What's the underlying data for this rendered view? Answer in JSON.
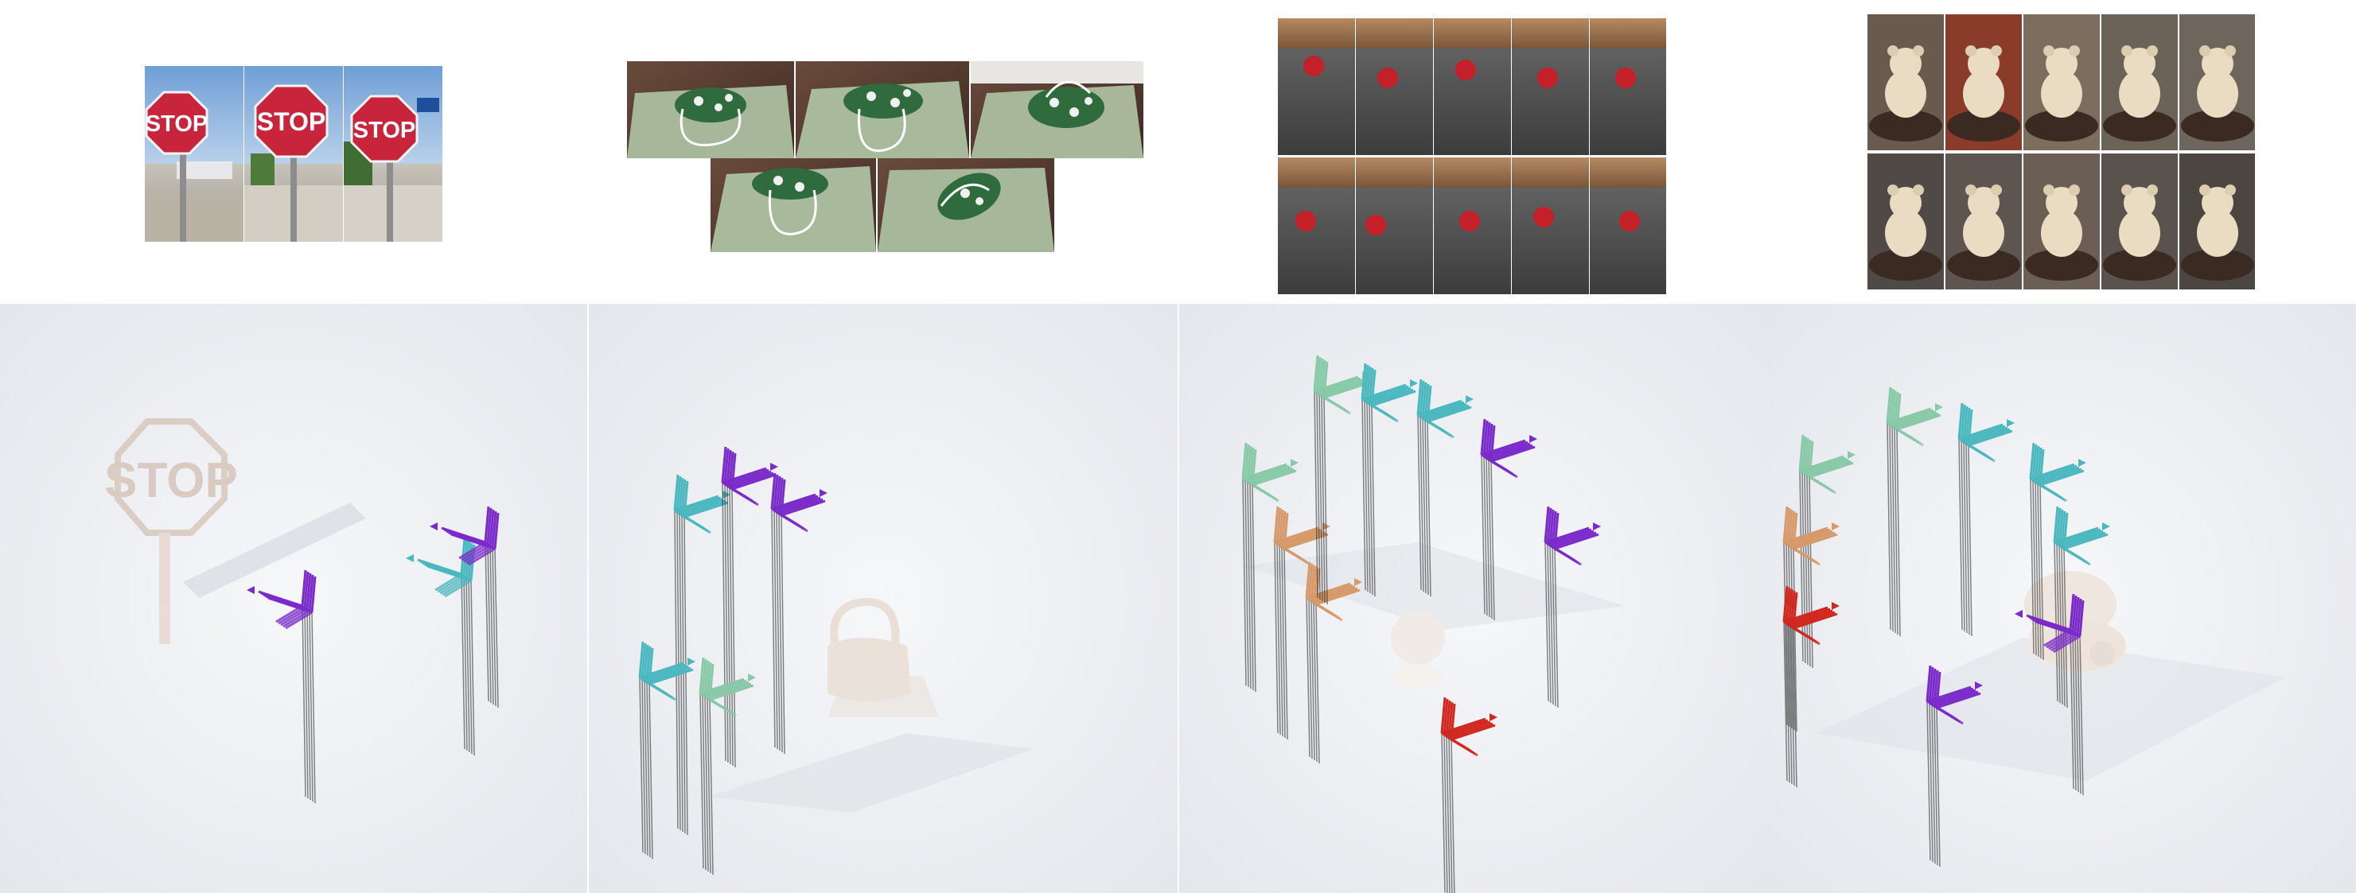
{
  "sign_text": [
    "STOP",
    "STOP",
    "STOP"
  ],
  "sign_reconstruction_text": "STOP",
  "colors": {
    "background": "#ffffff",
    "render_background": "#eef0f3",
    "sign_red": "#c8243b",
    "bag_green": "#2f6b3c",
    "apple_red": "#c3202a",
    "teddy_cream": "#e9dcc2",
    "camera_purple": "#7a2bc9",
    "camera_cyan": "#4bb8c0",
    "camera_green": "#88c9a8",
    "camera_orange": "#d69a6a",
    "camera_red": "#d0281e"
  },
  "scenes": [
    {
      "object": "stop sign",
      "views": 3
    },
    {
      "object": "handbag",
      "views": 5
    },
    {
      "object": "apple",
      "views": 10
    },
    {
      "object": "teddy bear",
      "views": 10
    }
  ]
}
